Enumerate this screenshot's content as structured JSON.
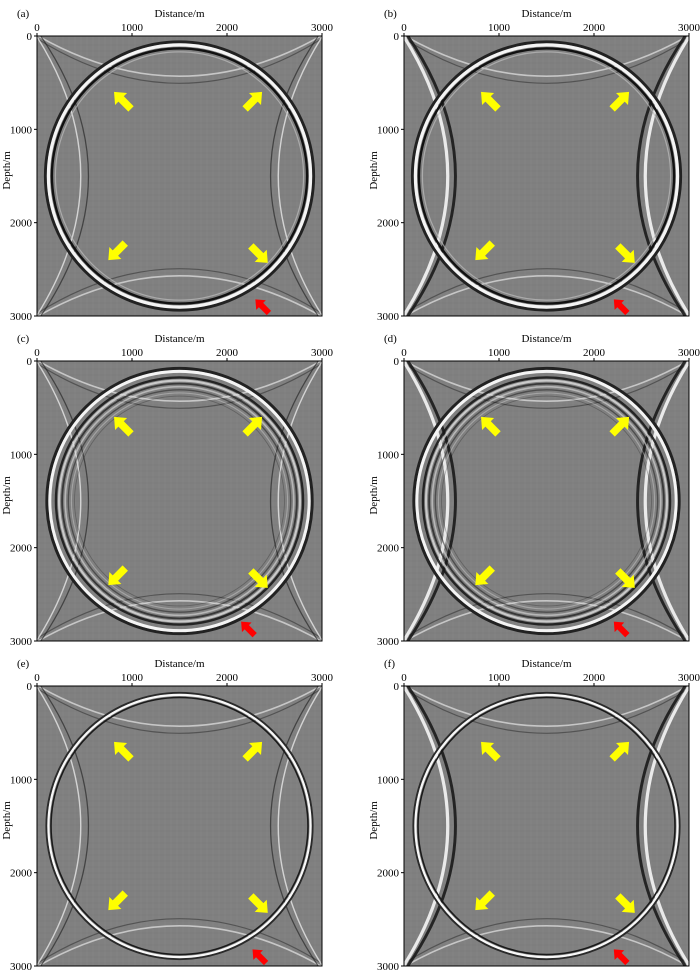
{
  "figure": {
    "x_axis_label": "Distance/m",
    "y_axis_label": "Depth/m",
    "x_ticks": [
      "0",
      "1000",
      "2000",
      "3000"
    ],
    "y_ticks": [
      "0",
      "1000",
      "2000",
      "3000"
    ],
    "x_range_m": [
      0,
      3000
    ],
    "y_range_m": [
      0,
      3000
    ],
    "background_color": "#808080",
    "arrow_colors": {
      "primary": "#ffff00",
      "highlight": "#ff0000"
    },
    "panels": [
      {
        "label": "(a)",
        "wavefront_style": "single-band"
      },
      {
        "label": "(b)",
        "wavefront_style": "single-band"
      },
      {
        "label": "(c)",
        "wavefront_style": "multi-band"
      },
      {
        "label": "(d)",
        "wavefront_style": "multi-band"
      },
      {
        "label": "(e)",
        "wavefront_style": "thin-band"
      },
      {
        "label": "(f)",
        "wavefront_style": "thin-band"
      }
    ]
  }
}
